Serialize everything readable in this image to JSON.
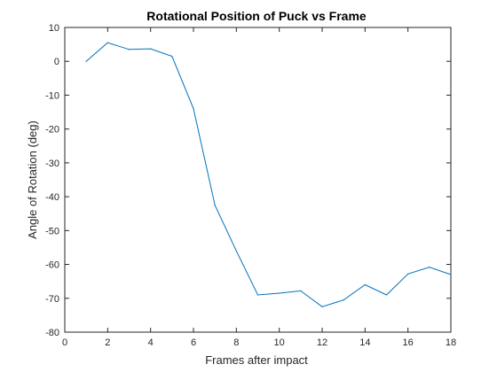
{
  "chart_data": {
    "type": "line",
    "title": "Rotational Position of Puck vs Frame",
    "xlabel": "Frames after impact",
    "ylabel": "Angle of Rotation (deg)",
    "xlim": [
      0,
      18
    ],
    "ylim": [
      -80,
      10
    ],
    "xticks": [
      0,
      2,
      4,
      6,
      8,
      10,
      12,
      14,
      16,
      18
    ],
    "yticks": [
      10,
      0,
      -10,
      -20,
      -30,
      -40,
      -50,
      -60,
      -70,
      -80
    ],
    "grid": false,
    "series": [
      {
        "color": "#0072bd",
        "x": [
          1,
          2,
          3,
          4,
          5,
          6,
          7,
          8,
          9,
          10,
          11,
          12,
          13,
          14,
          15,
          16,
          17,
          18
        ],
        "y": [
          0,
          5.5,
          3.5,
          3.7,
          1.5,
          -14,
          -42.5,
          -56,
          -69,
          -68.5,
          -67.8,
          -72.5,
          -70.5,
          -66,
          -69,
          -62.8,
          -60.8,
          -63
        ]
      }
    ]
  }
}
